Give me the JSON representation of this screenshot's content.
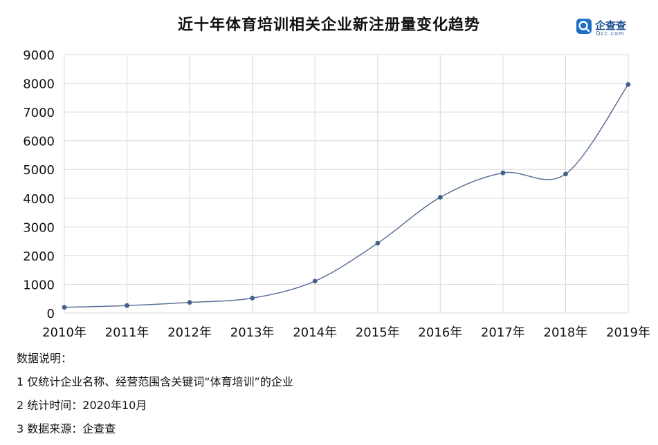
{
  "header": {
    "title": "近十年体育培训相关企业新注册量变化趋势",
    "logo_name": "企查查",
    "logo_sub": "Qcc.com"
  },
  "chart_data": {
    "type": "line",
    "title": "近十年体育培训相关企业新注册量变化趋势",
    "categories": [
      "2010年",
      "2011年",
      "2012年",
      "2013年",
      "2014年",
      "2015年",
      "2016年",
      "2017年",
      "2018年",
      "2019年"
    ],
    "values": [
      200,
      260,
      370,
      520,
      1110,
      2430,
      4030,
      4880,
      4840,
      7960
    ],
    "ylim": [
      0,
      9000
    ],
    "yticks": [
      0,
      1000,
      2000,
      3000,
      4000,
      5000,
      6000,
      7000,
      8000,
      9000
    ],
    "grid": true,
    "legend": "none",
    "line_color": "#5a7096",
    "marker_color": "#44608f",
    "smooth": true
  },
  "notes": {
    "heading": "数据说明：",
    "items": [
      "1 仅统计企业名称、经营范围含关键词“体育培训”的企业",
      "2 统计时间：2020年10月",
      "3 数据来源：企查查"
    ]
  },
  "colors": {
    "grid": "#d9d9d9",
    "logo": "#1d4f8f"
  }
}
